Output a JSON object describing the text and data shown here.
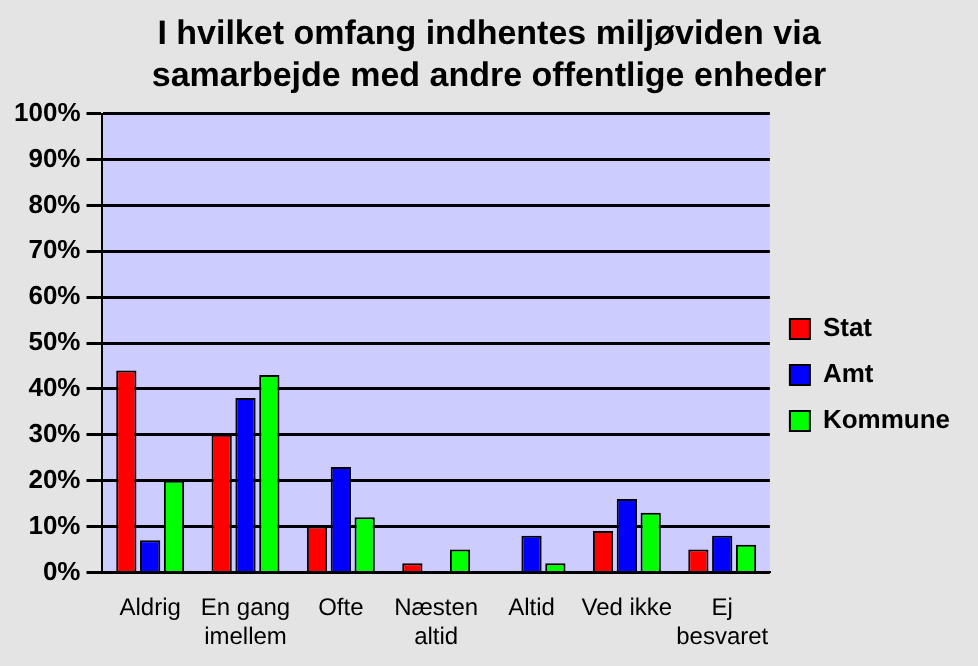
{
  "chart_data": {
    "type": "bar",
    "title": "I hvilket omfang indhentes miljøviden via samarbejde med andre offentlige enheder",
    "categories": [
      "Aldrig",
      "En gang imellem",
      "Ofte",
      "Næsten altid",
      "Altid",
      "Ved ikke",
      "Ej besvaret"
    ],
    "series": [
      {
        "name": "Stat",
        "color": "#ff0000",
        "values": [
          44,
          30,
          10,
          2,
          0,
          9,
          5
        ]
      },
      {
        "name": "Amt",
        "color": "#0000ff",
        "values": [
          7,
          38,
          23,
          0,
          8,
          16,
          8
        ]
      },
      {
        "name": "Kommune",
        "color": "#00ff00",
        "values": [
          20,
          43,
          12,
          5,
          2,
          13,
          6
        ]
      }
    ],
    "ylim": [
      0,
      100
    ],
    "yticks": [
      {
        "value": 0,
        "label": "0%"
      },
      {
        "value": 10,
        "label": "10%"
      },
      {
        "value": 20,
        "label": "20%"
      },
      {
        "value": 30,
        "label": "30%"
      },
      {
        "value": 40,
        "label": "40%"
      },
      {
        "value": 50,
        "label": "50%"
      },
      {
        "value": 60,
        "label": "60%"
      },
      {
        "value": 70,
        "label": "70%"
      },
      {
        "value": 80,
        "label": "80%"
      },
      {
        "value": 90,
        "label": "90%"
      },
      {
        "value": 100,
        "label": "100%"
      }
    ],
    "grid": "y",
    "legend": "right"
  }
}
